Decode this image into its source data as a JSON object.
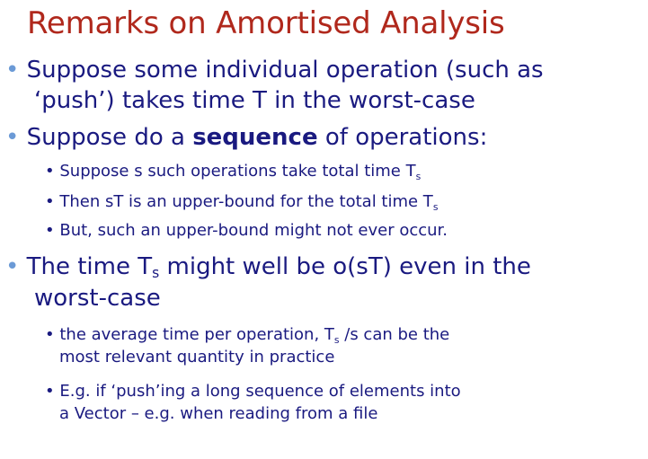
{
  "title": "Remarks on Amortised Analysis",
  "bullets": {
    "b1_line1": "Suppose some individual operation (such as",
    "b1_line2": "‘push’)  takes time T in the worst-case",
    "b2_pre": "Suppose do a ",
    "b2_bold": "sequence",
    "b2_post": " of operations:",
    "s1_pre": "Suppose s such operations take total time T",
    "s1_sub": "s",
    "s2_pre": "Then sT is an upper-bound for the total time T",
    "s2_sub": "s",
    "s3": "But, such an upper-bound might not ever occur.",
    "b3_pre": "The time T",
    "b3_sub": "s",
    "b3_post": " might well be o(sT) even in the",
    "b3_line2": "worst-case",
    "s4_pre": "the average time per operation, T",
    "s4_sub": "s",
    "s4_post": " /s  can be the",
    "s4_line2": "most relevant quantity in practice",
    "s5_line1": "E.g. if ‘push’ing a long sequence of elements into",
    "s5_line2": "a Vector – e.g. when reading from a file"
  },
  "bullet_glyph": "•"
}
